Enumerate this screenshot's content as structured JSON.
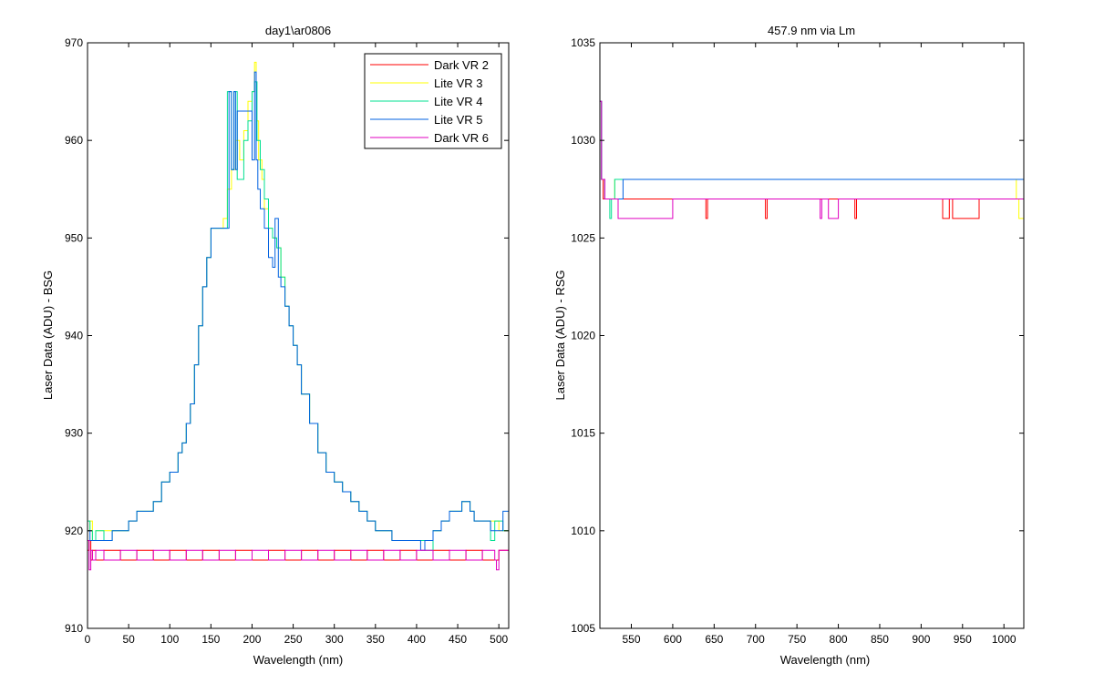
{
  "figure": {
    "background": "#ffffff",
    "axes_color": "#000000"
  },
  "chart_data": [
    {
      "type": "line",
      "title": "day1\\ar0806",
      "xlabel": "Wavelength (nm)",
      "ylabel": "Laser Data (ADU) - BSG",
      "xlim": [
        0,
        512
      ],
      "ylim": [
        910,
        970
      ],
      "xticks": [
        0,
        50,
        100,
        150,
        200,
        250,
        300,
        350,
        400,
        450,
        500
      ],
      "yticks": [
        910,
        920,
        930,
        940,
        950,
        960,
        970
      ],
      "grid": false,
      "legend_position": "top-right",
      "series": [
        {
          "name": "Dark VR 2",
          "color": "#ff0000",
          "x": [
            0,
            2,
            4,
            6,
            10,
            20,
            40,
            60,
            80,
            100,
            120,
            140,
            160,
            180,
            200,
            220,
            240,
            260,
            280,
            300,
            320,
            340,
            360,
            380,
            400,
            420,
            440,
            460,
            480,
            500,
            512
          ],
          "y": [
            918,
            919,
            917,
            918,
            917,
            918,
            917,
            918,
            917,
            918,
            917,
            918,
            917,
            918,
            917,
            918,
            917,
            918,
            917,
            918,
            917,
            918,
            917,
            918,
            917,
            918,
            917,
            918,
            917,
            918,
            917
          ]
        },
        {
          "name": "Lite VR 3",
          "color": "#ffff00",
          "x": [
            0,
            3,
            6,
            10,
            20,
            30,
            40,
            50,
            60,
            70,
            80,
            90,
            100,
            110,
            115,
            120,
            125,
            130,
            135,
            140,
            145,
            150,
            160,
            165,
            170,
            175,
            180,
            185,
            190,
            195,
            200,
            203,
            205,
            208,
            212,
            215,
            220,
            225,
            230,
            235,
            240,
            245,
            250,
            255,
            260,
            270,
            280,
            290,
            300,
            310,
            320,
            330,
            340,
            350,
            360,
            370,
            380,
            390,
            400,
            410,
            420,
            430,
            440,
            450,
            455,
            460,
            465,
            470,
            480,
            490,
            500,
            505,
            512
          ],
          "y": [
            920,
            921,
            919,
            920,
            920,
            920,
            920,
            921,
            922,
            922,
            923,
            925,
            926,
            928,
            929,
            931,
            933,
            937,
            941,
            945,
            948,
            951,
            951,
            952,
            955,
            957,
            960,
            958,
            961,
            964,
            965,
            968,
            962,
            958,
            956,
            953,
            951,
            950,
            949,
            946,
            943,
            941,
            939,
            937,
            934,
            931,
            928,
            926,
            925,
            924,
            923,
            922,
            921,
            920,
            920,
            919,
            919,
            919,
            919,
            919,
            920,
            921,
            922,
            922,
            923,
            923,
            922,
            921,
            921,
            921,
            920,
            920,
            920
          ]
        },
        {
          "name": "Lite VR 4",
          "color": "#00e090",
          "x": [
            0,
            3,
            6,
            10,
            20,
            30,
            40,
            50,
            60,
            70,
            80,
            90,
            100,
            110,
            115,
            120,
            125,
            130,
            135,
            140,
            145,
            150,
            165,
            170,
            175,
            178,
            182,
            190,
            195,
            200,
            203,
            206,
            210,
            215,
            220,
            225,
            230,
            235,
            240,
            245,
            250,
            255,
            260,
            270,
            280,
            290,
            300,
            310,
            320,
            330,
            340,
            350,
            360,
            370,
            380,
            390,
            400,
            410,
            420,
            430,
            440,
            450,
            455,
            460,
            465,
            470,
            480,
            490,
            495,
            500,
            505,
            512
          ],
          "y": [
            921,
            920,
            919,
            920,
            919,
            920,
            920,
            921,
            922,
            922,
            923,
            925,
            926,
            928,
            929,
            931,
            933,
            937,
            941,
            945,
            948,
            951,
            951,
            965,
            957,
            965,
            956,
            960,
            962,
            965,
            966,
            960,
            957,
            954,
            951,
            950,
            949,
            946,
            943,
            941,
            939,
            937,
            934,
            931,
            928,
            926,
            925,
            924,
            923,
            922,
            921,
            920,
            920,
            919,
            919,
            919,
            919,
            918,
            920,
            921,
            922,
            922,
            923,
            923,
            922,
            921,
            921,
            919,
            921,
            921,
            920,
            921
          ]
        },
        {
          "name": "Lite VR 5",
          "color": "#0060e0",
          "x": [
            0,
            3,
            6,
            10,
            20,
            30,
            40,
            50,
            60,
            70,
            80,
            90,
            100,
            110,
            115,
            120,
            125,
            130,
            135,
            140,
            145,
            150,
            170,
            172,
            175,
            178,
            180,
            182,
            200,
            203,
            205,
            207,
            210,
            215,
            220,
            225,
            228,
            232,
            235,
            240,
            245,
            250,
            255,
            260,
            270,
            280,
            290,
            300,
            310,
            320,
            330,
            340,
            350,
            360,
            370,
            380,
            390,
            400,
            405,
            410,
            420,
            430,
            440,
            450,
            455,
            460,
            465,
            470,
            480,
            490,
            500,
            505,
            512
          ],
          "y": [
            920,
            919,
            919,
            919,
            919,
            920,
            920,
            921,
            922,
            922,
            923,
            925,
            926,
            928,
            929,
            931,
            933,
            937,
            941,
            945,
            948,
            951,
            951,
            965,
            957,
            965,
            957,
            963,
            958,
            967,
            958,
            955,
            953,
            951,
            948,
            947,
            952,
            946,
            945,
            943,
            941,
            939,
            937,
            934,
            931,
            928,
            926,
            925,
            924,
            923,
            922,
            921,
            920,
            920,
            919,
            919,
            919,
            919,
            918,
            919,
            920,
            921,
            922,
            922,
            923,
            923,
            922,
            921,
            921,
            920,
            920,
            922,
            921
          ]
        },
        {
          "name": "Dark VR 6",
          "color": "#e000c0",
          "x": [
            0,
            2,
            4,
            6,
            10,
            20,
            40,
            60,
            80,
            100,
            120,
            140,
            160,
            180,
            200,
            220,
            240,
            260,
            280,
            300,
            320,
            340,
            360,
            380,
            400,
            420,
            440,
            460,
            480,
            495,
            497,
            500,
            512
          ],
          "y": [
            919,
            916,
            918,
            917,
            918,
            917,
            918,
            917,
            918,
            917,
            918,
            917,
            918,
            917,
            918,
            917,
            918,
            917,
            918,
            917,
            918,
            917,
            918,
            917,
            918,
            917,
            918,
            917,
            918,
            917,
            916,
            918,
            917
          ]
        }
      ]
    },
    {
      "type": "line",
      "title": "457.9 nm via Lm",
      "xlabel": "Wavelength (nm)",
      "ylabel": "Laser Data (ADU) - RSG",
      "xlim": [
        512,
        1024
      ],
      "ylim": [
        1005,
        1035
      ],
      "xticks": [
        550,
        600,
        650,
        700,
        750,
        800,
        850,
        900,
        950,
        1000
      ],
      "yticks": [
        1005,
        1010,
        1015,
        1020,
        1025,
        1030,
        1035
      ],
      "grid": false,
      "legend": "none",
      "series": [
        {
          "color": "#ff0000",
          "x": [
            512,
            514,
            516,
            520,
            560,
            600,
            638,
            640,
            642,
            680,
            710,
            712,
            714,
            760,
            818,
            820,
            822,
            880,
            922,
            926,
            930,
            934,
            938,
            970,
            1000,
            1024
          ],
          "y": [
            1032,
            1028,
            1027,
            1027,
            1027,
            1027,
            1027,
            1026,
            1027,
            1027,
            1027,
            1026,
            1027,
            1027,
            1027,
            1026,
            1027,
            1027,
            1027,
            1026,
            1026,
            1027,
            1026,
            1027,
            1027,
            1027
          ]
        },
        {
          "color": "#ffff00",
          "x": [
            512,
            514,
            518,
            530,
            560,
            600,
            640,
            680,
            720,
            760,
            800,
            840,
            880,
            920,
            960,
            1000,
            1015,
            1018,
            1022,
            1024
          ],
          "y": [
            1032,
            1028,
            1027,
            1028,
            1028,
            1028,
            1028,
            1028,
            1028,
            1028,
            1028,
            1028,
            1028,
            1028,
            1028,
            1028,
            1027,
            1026,
            1026,
            1027
          ]
        },
        {
          "color": "#00e090",
          "x": [
            512,
            514,
            518,
            524,
            526,
            530,
            560,
            600,
            640,
            680,
            720,
            760,
            800,
            840,
            880,
            920,
            960,
            1000,
            1024
          ],
          "y": [
            1032,
            1028,
            1027,
            1026,
            1027,
            1028,
            1028,
            1028,
            1028,
            1028,
            1028,
            1028,
            1028,
            1028,
            1028,
            1028,
            1028,
            1028,
            1027
          ]
        },
        {
          "color": "#0060e0",
          "x": [
            512,
            514,
            518,
            540,
            580,
            620,
            660,
            700,
            740,
            780,
            820,
            860,
            900,
            940,
            980,
            1024
          ],
          "y": [
            1032,
            1028,
            1027,
            1028,
            1028,
            1028,
            1028,
            1028,
            1028,
            1028,
            1028,
            1028,
            1028,
            1028,
            1028,
            1027
          ]
        },
        {
          "color": "#e000c0",
          "x": [
            512,
            514,
            518,
            532,
            534,
            538,
            600,
            700,
            776,
            778,
            780,
            786,
            788,
            800,
            900,
            1000,
            1024
          ],
          "y": [
            1032,
            1028,
            1027,
            1027,
            1026,
            1026,
            1027,
            1027,
            1027,
            1026,
            1027,
            1027,
            1026,
            1027,
            1027,
            1027,
            1027
          ]
        }
      ]
    }
  ]
}
